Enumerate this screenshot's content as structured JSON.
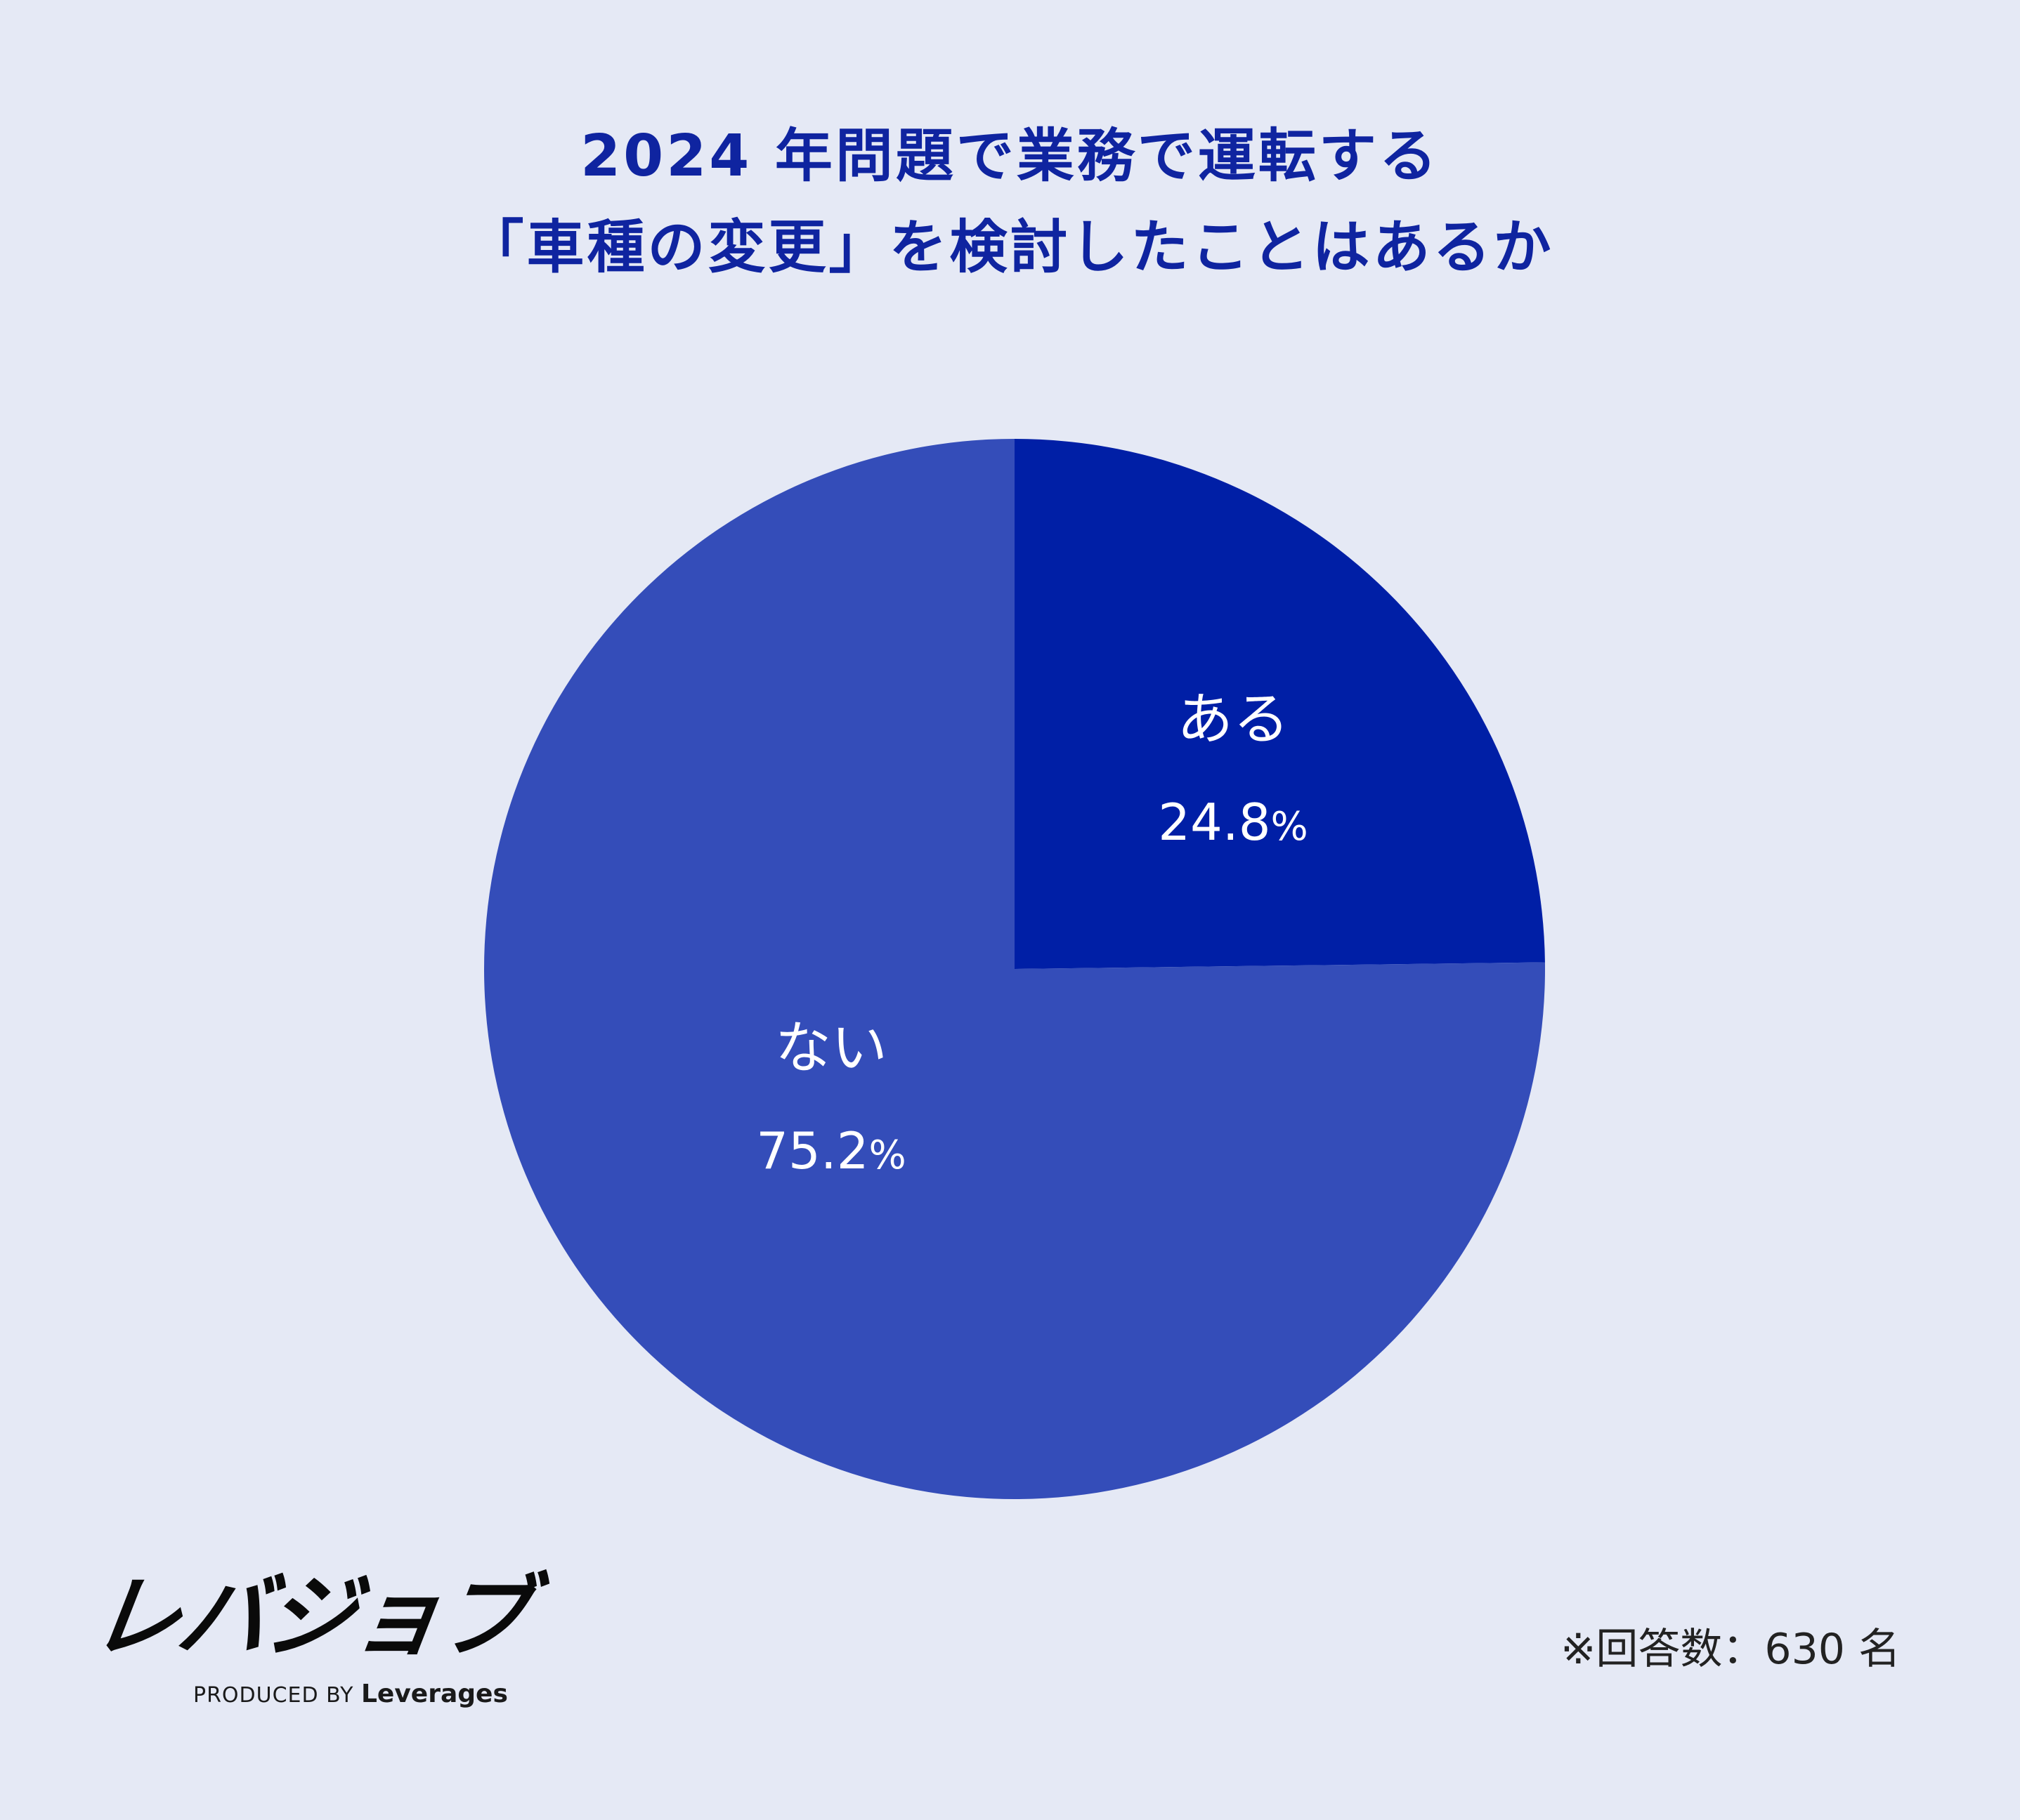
{
  "title_lines": [
    "2024 年問題で業務で運転する",
    "「車種の変更」を検討したことはあるか"
  ],
  "chart_data": {
    "type": "pie",
    "title": "2024 年問題で業務で運転する「車種の変更」を検討したことはあるか",
    "start_angle": "12 o'clock, clockwise",
    "slices": [
      {
        "label": "ある",
        "value": 24.8,
        "value_label": "24.8",
        "unit": "%",
        "color": "#001fa6"
      },
      {
        "label": "ない",
        "value": 75.2,
        "value_label": "75.2",
        "unit": "%",
        "color": "#344db9"
      }
    ]
  },
  "footnote": "※回答数：630 名",
  "logo": {
    "name": "レバジョブ",
    "produced_by": "PRODUCED BY",
    "company": "Leverages"
  },
  "colors": {
    "background": "#e5e9f5",
    "title": "#0f24a0",
    "label_text": "#ffffff"
  }
}
